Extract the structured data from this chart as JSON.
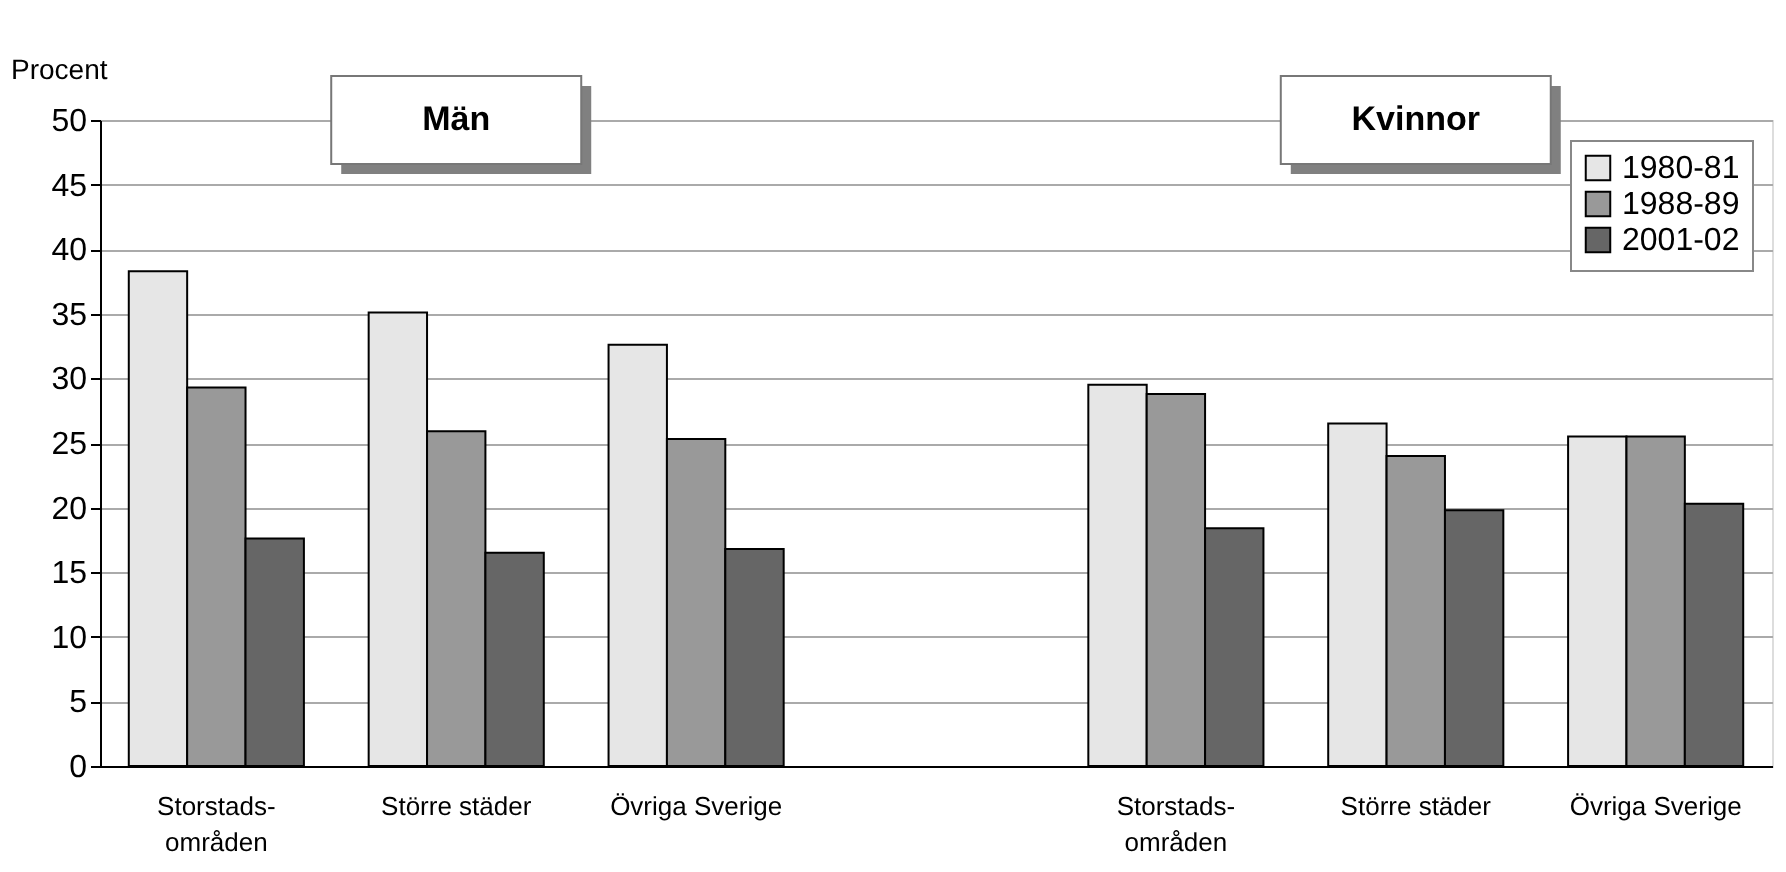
{
  "chart_data": {
    "type": "bar",
    "ylabel": "Procent",
    "categories": [
      "Storstads-\nområden",
      "Större städer",
      "Övriga Sverige",
      null,
      "Storstads-\nområden",
      "Större städer",
      "Övriga Sverige"
    ],
    "series": [
      {
        "name": "1980-81",
        "color": "#e6e6e6",
        "values": [
          38.3,
          35.1,
          32.6,
          null,
          29.5,
          26.5,
          25.5
        ]
      },
      {
        "name": "1988-89",
        "color": "#999999",
        "values": [
          29.3,
          25.9,
          25.3,
          null,
          28.8,
          24.0,
          25.5
        ]
      },
      {
        "name": "2001-02",
        "color": "#666666",
        "values": [
          17.6,
          16.5,
          16.8,
          null,
          18.4,
          19.8,
          20.3
        ]
      }
    ],
    "annotations": [
      "Män",
      "Kvinnor"
    ],
    "ylim": [
      0,
      50
    ],
    "yticks": [
      0,
      5,
      10,
      15,
      20,
      25,
      30,
      35,
      40,
      45,
      50
    ],
    "grid": "y",
    "legend": "top right"
  }
}
